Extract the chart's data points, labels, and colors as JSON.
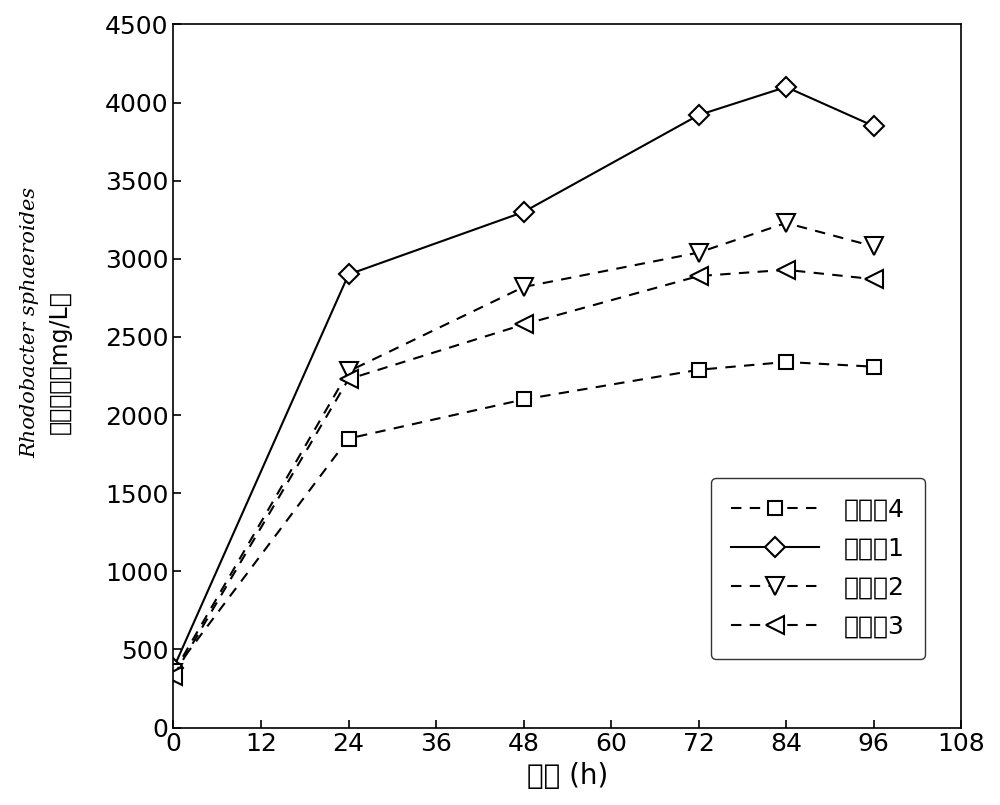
{
  "x": [
    0,
    24,
    48,
    72,
    84,
    96
  ],
  "series": {
    "实施例1": {
      "y": [
        380,
        2900,
        3300,
        3920,
        4100,
        3850
      ],
      "linestyle": "solid",
      "marker": "D",
      "markersize": 10,
      "label": "实施例1"
    },
    "实施例2": {
      "y": [
        350,
        2280,
        2820,
        3040,
        3230,
        3080
      ],
      "linestyle": "dashed",
      "marker": "v",
      "markersize": 11,
      "label": "实施例2"
    },
    "实施例3": {
      "y": [
        330,
        2230,
        2580,
        2890,
        2930,
        2870
      ],
      "linestyle": "dashed",
      "marker": "<",
      "markersize": 11,
      "label": "实施例3"
    },
    "实施例4": {
      "y": [
        360,
        1850,
        2100,
        2290,
        2340,
        2310
      ],
      "linestyle": "dashed",
      "marker": "s",
      "markersize": 9,
      "label": "实施例4"
    }
  },
  "legend_order": [
    "实施例4",
    "实施例1",
    "实施例2",
    "实施例3"
  ],
  "xlabel": "时间 (h)",
  "ylabel_cn": "菌体产量",
  "ylabel_italic": "Rhodobacter sphaeroides",
  "ylabel_unit": "mg/L",
  "xlim": [
    0,
    108
  ],
  "ylim": [
    0,
    4500
  ],
  "xticks": [
    0,
    12,
    24,
    36,
    48,
    60,
    72,
    84,
    96,
    108
  ],
  "yticks": [
    0,
    500,
    1000,
    1500,
    2000,
    2500,
    3000,
    3500,
    4000,
    4500
  ],
  "line_color": "#000000",
  "background_color": "#ffffff",
  "dpi": 100
}
